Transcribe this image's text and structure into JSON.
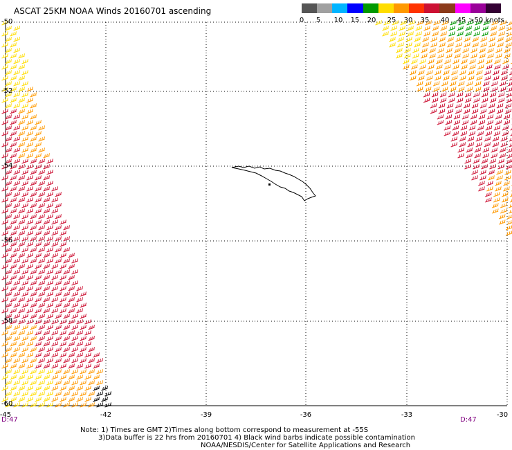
{
  "title": "ASCAT 25KM NOAA Winds 20160701 ascending",
  "legend": {
    "colors": [
      "#555555",
      "#a0a0a0",
      "#00b4ff",
      "#0000ff",
      "#009900",
      "#ffdd00",
      "#ff9900",
      "#ff3300",
      "#cc1133",
      "#8b3a1a",
      "#ff00ff",
      "#990099",
      "#330033"
    ],
    "labels": [
      "0",
      "5",
      "10",
      "15",
      "20",
      "25",
      "30",
      "35",
      "40",
      "45",
      ">50 knots"
    ]
  },
  "y_axis": {
    "labels": [
      "-50",
      "-52",
      "-54",
      "-56",
      "-58",
      "-60"
    ]
  },
  "x_axis": {
    "labels": [
      "-45",
      "-42",
      "-39",
      "-36",
      "-33",
      "-30"
    ]
  },
  "time_labels": {
    "left": "D:47",
    "right": "D:47"
  },
  "notes": {
    "line1": "Note: 1) Times are GMT 2)Times along bottom correspond to measurement at -55S",
    "line2": "3)Data buffer is 22 hrs from 20160701 4) Black wind barbs indicate possible contamination",
    "line3": "NOAA/NESDIS/Center for Satellite Applications and Research"
  },
  "features": {
    "island": "South Georgia"
  },
  "wind_colors": {
    "weak": "#009900",
    "moderate": "#ffdd00",
    "fresh": "#ff9900",
    "strong": "#cc1133",
    "contaminated": "#000000"
  }
}
